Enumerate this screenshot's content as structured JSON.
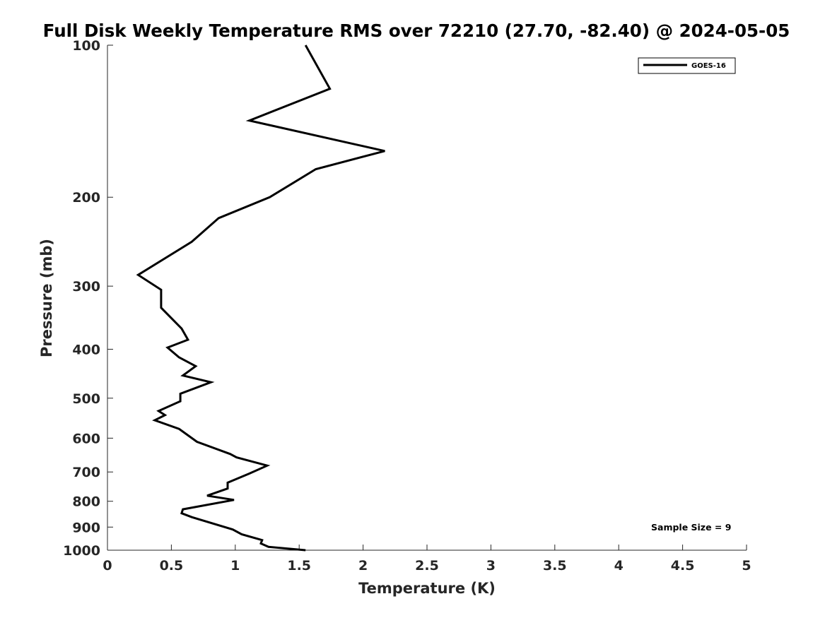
{
  "chart_data": {
    "type": "line",
    "title": "Full Disk Weekly Temperature RMS over 72210 (27.70, -82.40) @ 2024-05-05",
    "xlabel": "Temperature (K)",
    "ylabel": "Pressure (mb)",
    "xlim": [
      0,
      5
    ],
    "ylim": [
      100,
      1000
    ],
    "yscale": "log",
    "y_reversed": true,
    "x_ticks": [
      "0",
      "0.5",
      "1",
      "1.5",
      "2",
      "2.5",
      "3",
      "3.5",
      "4",
      "4.5",
      "5"
    ],
    "y_ticks": [
      "100",
      "200",
      "300",
      "400",
      "500",
      "600",
      "700",
      "800",
      "900",
      "1000"
    ],
    "grid": false,
    "legend_position": "top-right",
    "annotation": "Sample Size = 9",
    "series": [
      {
        "name": "GOES-16",
        "color": "#000000",
        "x": [
          1.55,
          1.26,
          1.2,
          1.21,
          1.05,
          0.98,
          0.66,
          0.58,
          0.59,
          0.99,
          0.78,
          0.94,
          0.94,
          1.11,
          1.25,
          1.01,
          0.96,
          0.7,
          0.56,
          0.37,
          0.45,
          0.4,
          0.57,
          0.57,
          0.81,
          0.59,
          0.69,
          0.56,
          0.47,
          0.63,
          0.58,
          0.42,
          0.42,
          0.24,
          0.66,
          0.87,
          1.27,
          1.63,
          2.17,
          1.11,
          1.74,
          1.55
        ],
        "y": [
          1000,
          985,
          970,
          955,
          930,
          910,
          860,
          845,
          830,
          795,
          780,
          755,
          735,
          705,
          680,
          655,
          645,
          610,
          575,
          553,
          540,
          530,
          507,
          490,
          465,
          451,
          432,
          415,
          397,
          383,
          364,
          331,
          305,
          285,
          245,
          220,
          200,
          176,
          162,
          141,
          122,
          100
        ]
      }
    ]
  }
}
